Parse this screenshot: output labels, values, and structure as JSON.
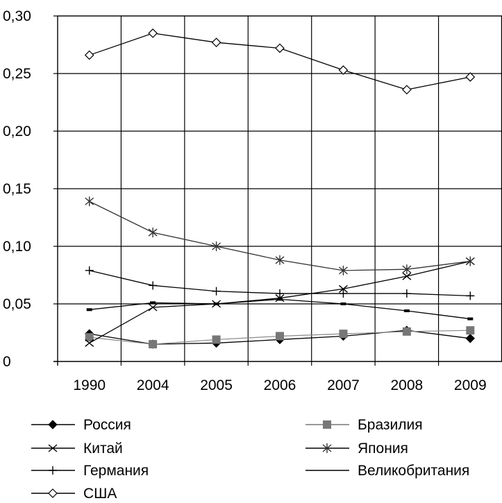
{
  "chart_data": {
    "type": "line",
    "title": "",
    "xlabel": "",
    "ylabel": "",
    "categories": [
      "1990",
      "2004",
      "2005",
      "2006",
      "2007",
      "2008",
      "2009"
    ],
    "ylim": [
      0,
      0.3
    ],
    "y_ticks": [
      {
        "value": 0,
        "label": "0"
      },
      {
        "value": 0.05,
        "label": "0,05"
      },
      {
        "value": 0.1,
        "label": "0,10"
      },
      {
        "value": 0.15,
        "label": "0,15"
      },
      {
        "value": 0.2,
        "label": "0,20"
      },
      {
        "value": 0.25,
        "label": "0,25"
      },
      {
        "value": 0.3,
        "label": "0,30"
      }
    ],
    "grid": true,
    "legend_position": "bottom",
    "series": [
      {
        "name": "Россия",
        "marker": "filled-diamond",
        "color": "#000000",
        "values": [
          0.024,
          0.015,
          0.016,
          0.019,
          0.022,
          0.027,
          0.02
        ]
      },
      {
        "name": "Бразилия",
        "marker": "square",
        "color": "#777777",
        "values": [
          0.021,
          0.015,
          0.019,
          0.022,
          0.024,
          0.026,
          0.027
        ]
      },
      {
        "name": "Китай",
        "marker": "x",
        "color": "#000000",
        "values": [
          0.016,
          0.047,
          0.05,
          0.055,
          0.063,
          0.074,
          0.087
        ]
      },
      {
        "name": "Япония",
        "marker": "star",
        "color": "#333333",
        "values": [
          0.139,
          0.112,
          0.1,
          0.088,
          0.079,
          0.08,
          0.087
        ]
      },
      {
        "name": "Германия",
        "marker": "plus",
        "color": "#000000",
        "values": [
          0.079,
          0.066,
          0.061,
          0.059,
          0.059,
          0.059,
          0.057
        ]
      },
      {
        "name": "Великобритания",
        "marker": "dash",
        "color": "#000000",
        "values": [
          0.045,
          0.051,
          0.05,
          0.054,
          0.05,
          0.044,
          0.037
        ]
      },
      {
        "name": "США",
        "marker": "open-diamond",
        "color": "#000000",
        "values": [
          0.266,
          0.285,
          0.277,
          0.272,
          0.253,
          0.236,
          0.247
        ]
      }
    ]
  }
}
